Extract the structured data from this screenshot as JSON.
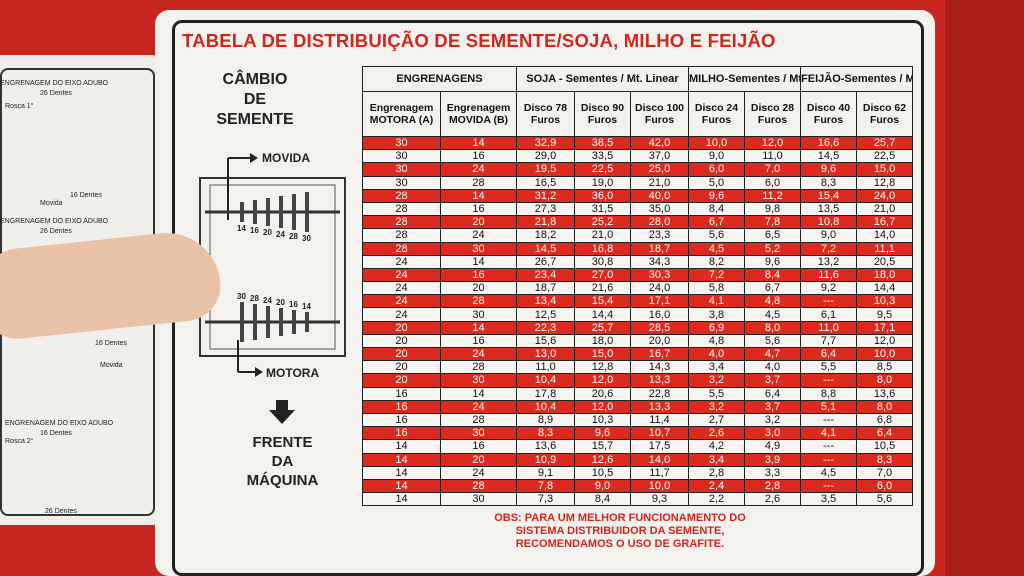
{
  "header": {
    "title": "TABELA DE DISTRIBUIÇÃO DE SEMENTE/SOJA, MILHO E FEIJÃO"
  },
  "side_panel": {
    "heading": [
      "CÂMBIO",
      "DE",
      "SEMENTE"
    ],
    "movida": "MOVIDA",
    "motora": "MOTORA",
    "gears_top": [
      "14",
      "16",
      "20",
      "24",
      "28",
      "30"
    ],
    "gears_bottom": [
      "30",
      "28",
      "24",
      "20",
      "16",
      "14"
    ],
    "front": [
      "FRENTE",
      "DA",
      "MÁQUINA"
    ]
  },
  "left_sign": {
    "labels": [
      "ENGRENAGEM DO EIXO ADUBO",
      "26 Dentes",
      "Rosca 1°",
      "16 Dentes",
      "Movida",
      "ENGRENAGEM DO EIXO ADUBO",
      "26 Dentes",
      "16 Dentes",
      "Movida",
      "ENGRENAGEM DO EIXO ADUBO",
      "16 Dentes",
      "Rosca 2°",
      "26 Dentes"
    ]
  },
  "table": {
    "groups": [
      {
        "label": "ENGRENAGENS",
        "span": 2
      },
      {
        "label": "SOJA - Sementes / Mt. Linear",
        "span": 3
      },
      {
        "label": "MILHO-Sementes / Mt. Linear",
        "span": 2
      },
      {
        "label": "FEIJÃO-Sementes / Mt. Linear",
        "span": 2
      }
    ],
    "columns": [
      "Engrenagem MOTORA (A)",
      "Engrenagem MOVIDA (B)",
      "Disco 78 Furos",
      "Disco 90 Furos",
      "Disco 100 Furos",
      "Disco 24 Furos",
      "Disco 28 Furos",
      "Disco 40 Furos",
      "Disco 62 Furos"
    ],
    "rows": [
      [
        "30",
        "14",
        "32,9",
        "38,5",
        "42,0",
        "10,0",
        "12,0",
        "16,6",
        "25,7"
      ],
      [
        "30",
        "16",
        "29,0",
        "33,5",
        "37,0",
        "9,0",
        "11,0",
        "14,5",
        "22,5"
      ],
      [
        "30",
        "24",
        "19,5",
        "22,5",
        "25,0",
        "6,0",
        "7,0",
        "9,6",
        "15,0"
      ],
      [
        "30",
        "28",
        "16,5",
        "19,0",
        "21,0",
        "5,0",
        "6,0",
        "8,3",
        "12,8"
      ],
      [
        "28",
        "14",
        "31,2",
        "36,0",
        "40,0",
        "9,6",
        "11,2",
        "15,4",
        "24,0"
      ],
      [
        "28",
        "16",
        "27,3",
        "31,5",
        "35,0",
        "8,4",
        "9,8",
        "13,5",
        "21,0"
      ],
      [
        "28",
        "20",
        "21,8",
        "25,2",
        "28,0",
        "6,7",
        "7,8",
        "10,8",
        "16,7"
      ],
      [
        "28",
        "24",
        "18,2",
        "21,0",
        "23,3",
        "5,6",
        "6,5",
        "9,0",
        "14,0"
      ],
      [
        "28",
        "30",
        "14,5",
        "16,8",
        "18,7",
        "4,5",
        "5,2",
        "7,2",
        "11,1"
      ],
      [
        "24",
        "14",
        "26,7",
        "30,8",
        "34,3",
        "8,2",
        "9,6",
        "13,2",
        "20,5"
      ],
      [
        "24",
        "16",
        "23,4",
        "27,0",
        "30,3",
        "7,2",
        "8,4",
        "11,6",
        "18,0"
      ],
      [
        "24",
        "20",
        "18,7",
        "21,6",
        "24,0",
        "5,8",
        "6,7",
        "9,2",
        "14,4"
      ],
      [
        "24",
        "28",
        "13,4",
        "15,4",
        "17,1",
        "4,1",
        "4,8",
        "---",
        "10,3"
      ],
      [
        "24",
        "30",
        "12,5",
        "14,4",
        "16,0",
        "3,8",
        "4,5",
        "6,1",
        "9,5"
      ],
      [
        "20",
        "14",
        "22,3",
        "25,7",
        "28,5",
        "6,9",
        "8,0",
        "11,0",
        "17,1"
      ],
      [
        "20",
        "16",
        "15,6",
        "18,0",
        "20,0",
        "4,8",
        "5,6",
        "7,7",
        "12,0"
      ],
      [
        "20",
        "24",
        "13,0",
        "15,0",
        "16,7",
        "4,0",
        "4,7",
        "6,4",
        "10,0"
      ],
      [
        "20",
        "28",
        "11,0",
        "12,8",
        "14,3",
        "3,4",
        "4,0",
        "5,5",
        "8,5"
      ],
      [
        "20",
        "30",
        "10,4",
        "12,0",
        "13,3",
        "3,2",
        "3,7",
        "---",
        "8,0"
      ],
      [
        "16",
        "14",
        "17,8",
        "20,6",
        "22,8",
        "5,5",
        "6,4",
        "8,8",
        "13,6"
      ],
      [
        "16",
        "24",
        "10,4",
        "12,0",
        "13,3",
        "3,2",
        "3,7",
        "5,1",
        "8,0"
      ],
      [
        "16",
        "28",
        "8,9",
        "10,3",
        "11,4",
        "2,7",
        "3,2",
        "---",
        "6,8"
      ],
      [
        "16",
        "30",
        "8,3",
        "9,6",
        "10,7",
        "2,6",
        "3,0",
        "4,1",
        "6,4"
      ],
      [
        "14",
        "16",
        "13,6",
        "15,7",
        "17,5",
        "4,2",
        "4,9",
        "---",
        "10,5"
      ],
      [
        "14",
        "20",
        "10,9",
        "12,6",
        "14,0",
        "3,4",
        "3,9",
        "---",
        "8,3"
      ],
      [
        "14",
        "24",
        "9,1",
        "10,5",
        "11,7",
        "2,8",
        "3,3",
        "4,5",
        "7,0"
      ],
      [
        "14",
        "28",
        "7,8",
        "9,0",
        "10,0",
        "2,4",
        "2,8",
        "---",
        "6,0"
      ],
      [
        "14",
        "30",
        "7,3",
        "8,4",
        "9,3",
        "2,2",
        "2,6",
        "3,5",
        "5,6"
      ]
    ]
  },
  "note": [
    "OBS: PARA UM MELHOR FUNCIONAMENTO DO",
    "SISTEMA DISTRIBUIDOR DA SEMENTE,",
    "RECOMENDAMOS O USO DE GRAFITE."
  ]
}
